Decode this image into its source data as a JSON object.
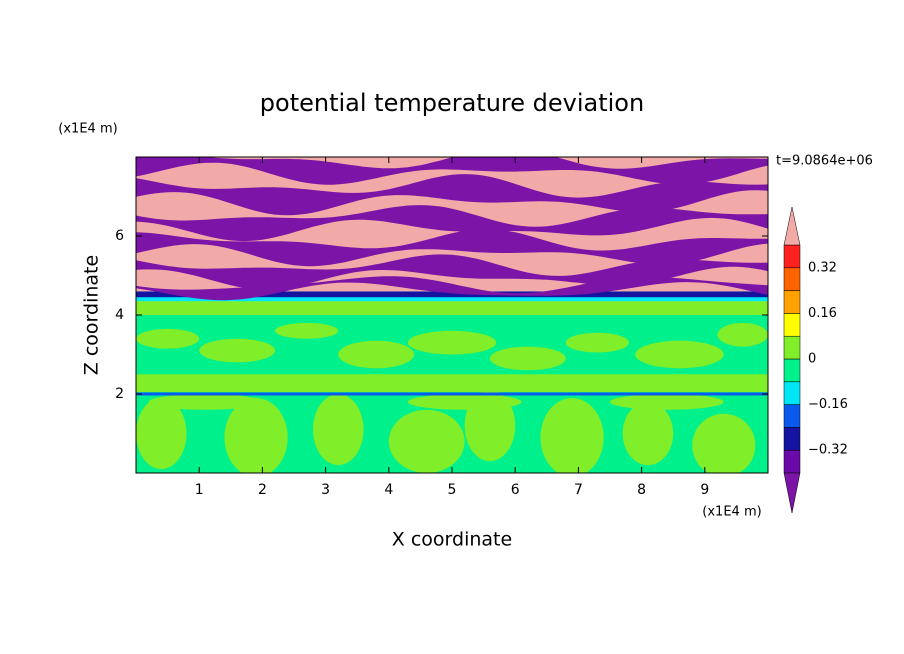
{
  "chart_data": {
    "type": "contour",
    "title": "potential temperature deviation",
    "xlabel": "X coordinate",
    "ylabel": "Z coordinate",
    "x_unit": "(x1E4 m)",
    "y_unit": "(x1E4 m)",
    "annotation": "t=9.0864e+06",
    "xlim": [
      0,
      10
    ],
    "ylim": [
      0,
      8
    ],
    "xticks": [
      1,
      2,
      3,
      4,
      5,
      6,
      7,
      8,
      9
    ],
    "yticks": [
      2,
      4,
      6
    ],
    "levels": [
      -0.4,
      -0.32,
      -0.24,
      -0.16,
      -0.08,
      0,
      0.08,
      0.16,
      0.24,
      0.32,
      0.4
    ],
    "colors": [
      "#6a0aa8",
      "#1414a0",
      "#0a5af0",
      "#00e6f5",
      "#00f08c",
      "#80ee28",
      "#ffff00",
      "#ffa200",
      "#ff6400",
      "#ff2020"
    ],
    "extend_colors": {
      "below": "#7d14a8",
      "above": "#f2aaa8"
    },
    "colorbar_ticks": [
      {
        "value": -0.32,
        "label": "−0.32"
      },
      {
        "value": -0.16,
        "label": "−0.16"
      },
      0,
      0.16,
      0.32
    ]
  }
}
